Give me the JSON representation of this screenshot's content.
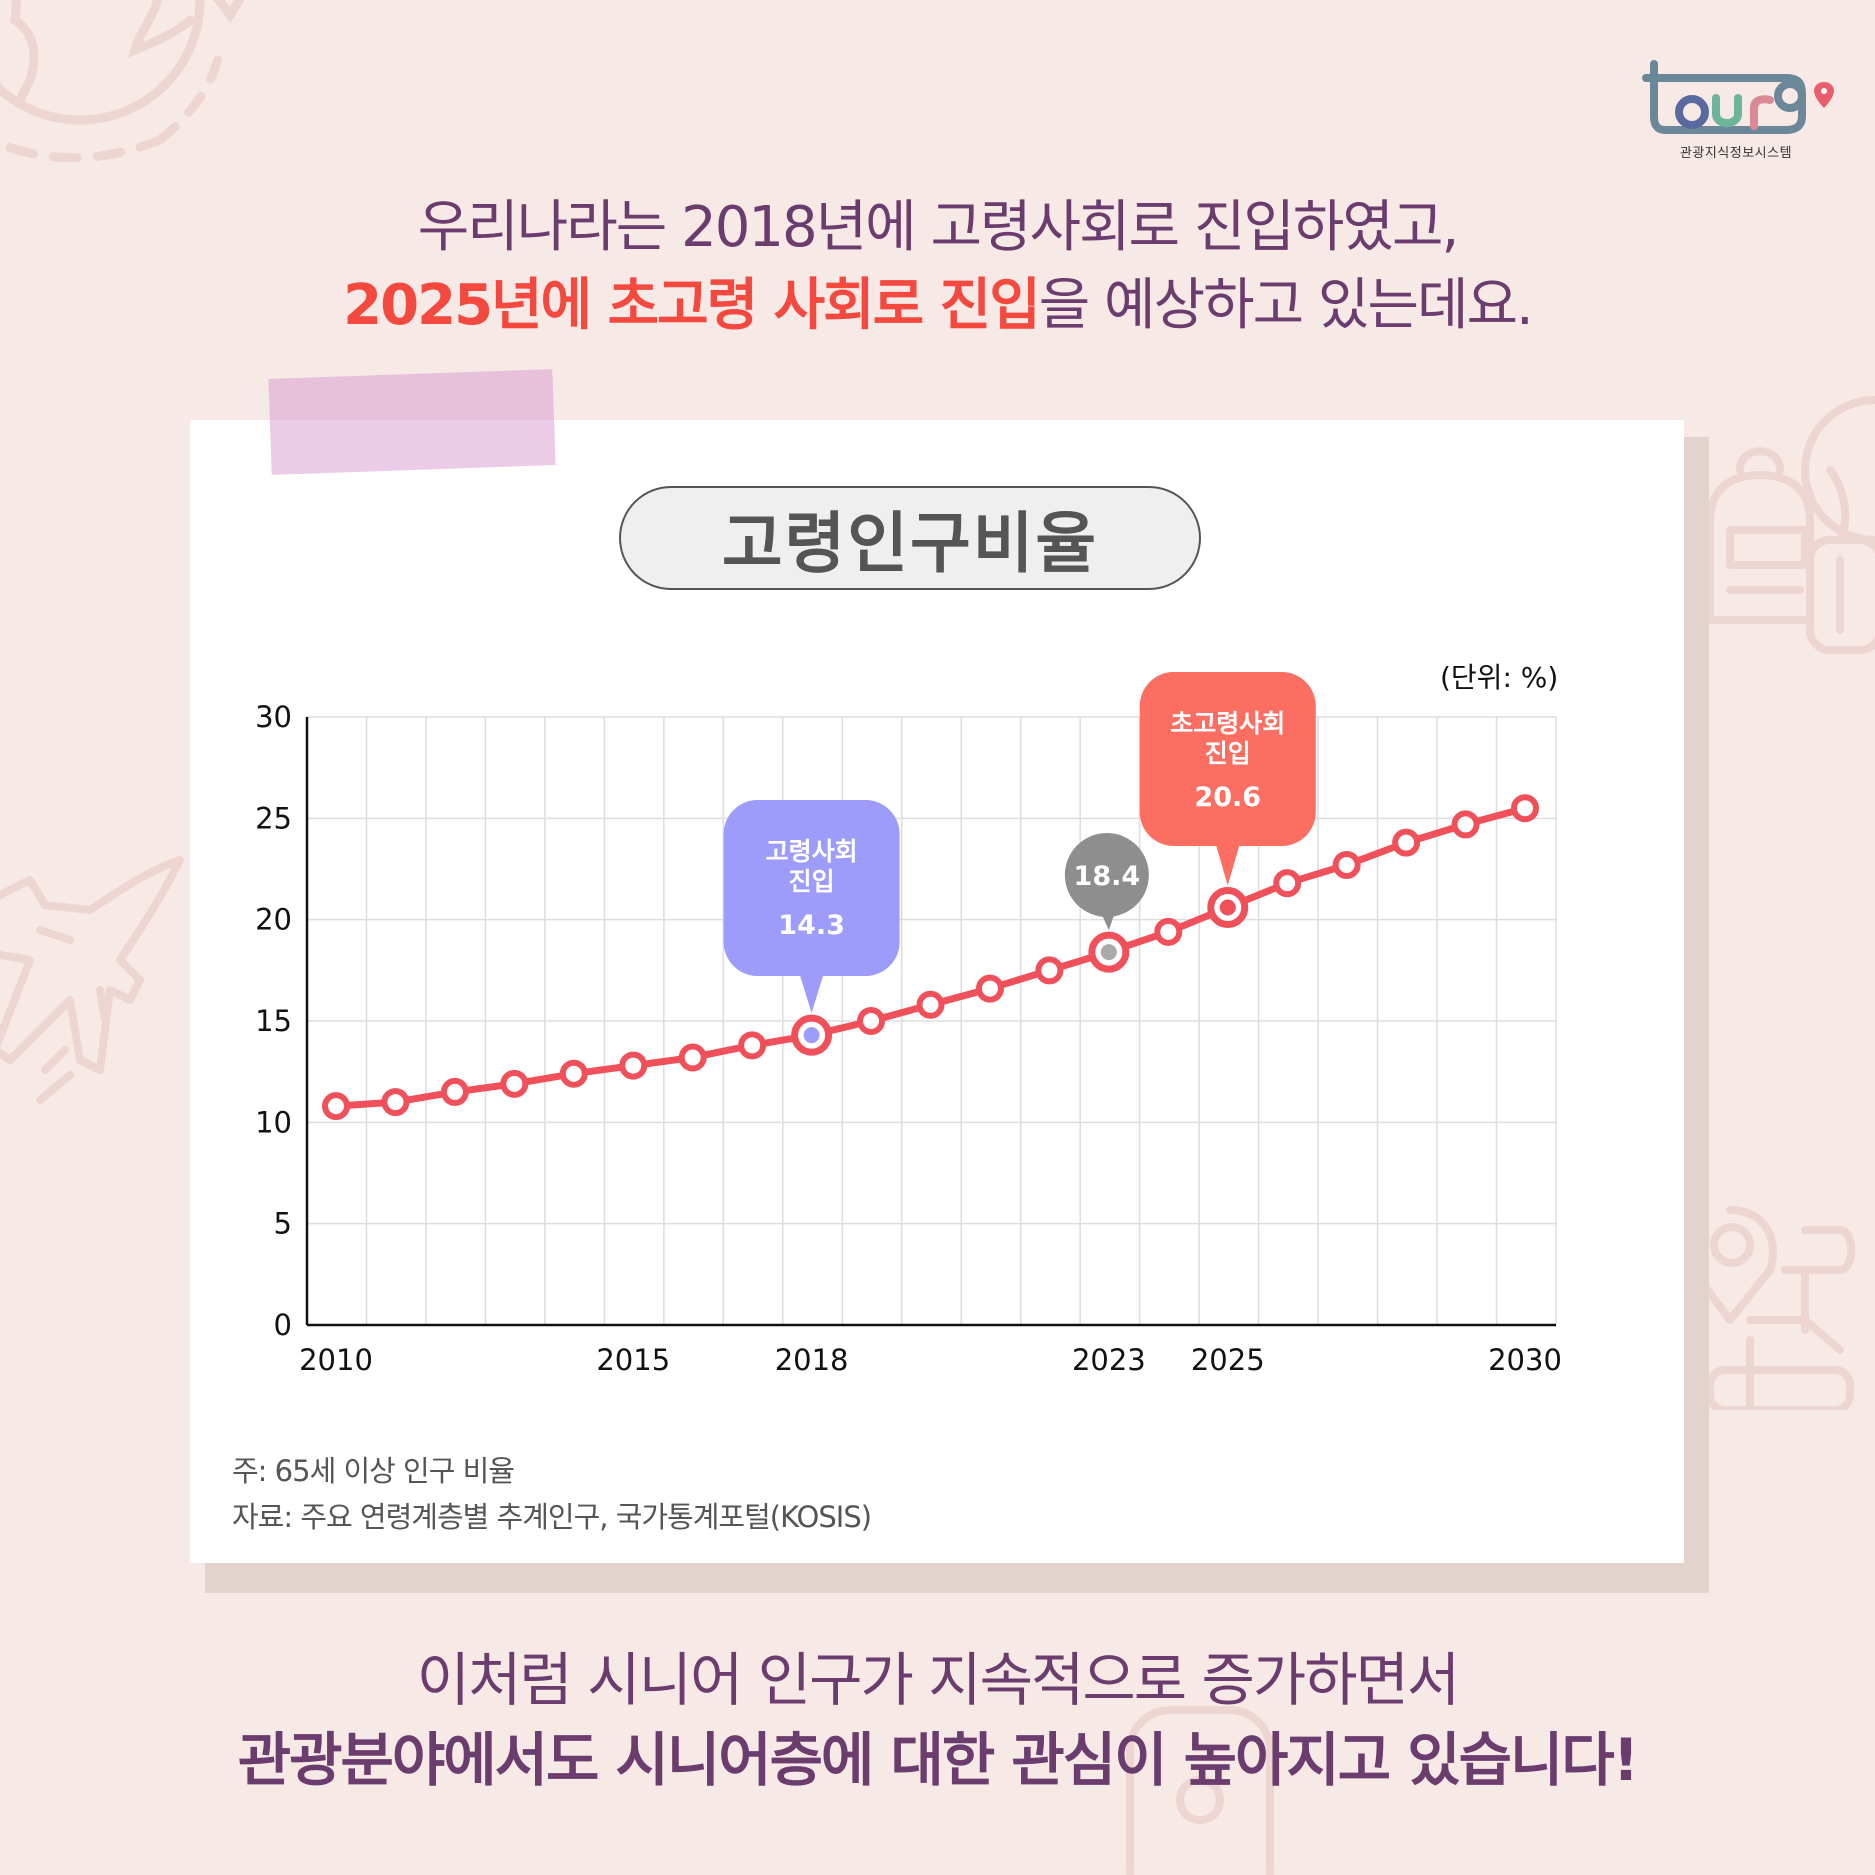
{
  "logo": {
    "wordmark": "tour9",
    "subtitle": "관광지식정보시스템",
    "colors": {
      "frame": "#6c8798",
      "o": "#5a6a9e",
      "u": "#6cb59c",
      "r": "#d98a94",
      "pin": "#e95e6c"
    }
  },
  "headline": {
    "line1": "우리나라는 2018년에 고령사회로 진입하였고,",
    "line2_highlight": "2025년에 초고령 사회로 진입",
    "line2_rest": "을 예상하고 있는데요."
  },
  "card": {
    "title": "고령인구비율",
    "unit": "(단위: %)",
    "footnotes": [
      "주: 65세 이상 인구 비율",
      "자료: 주요 연령계층별 추계인구, 국가통계포털(KOSIS)"
    ]
  },
  "callouts": [
    {
      "id": "aged",
      "line1": "고령사회",
      "line2": "진입",
      "value": "14.3",
      "year": 2018,
      "color": "#9e9cfb"
    },
    {
      "id": "y2023",
      "value": "18.4",
      "year": 2023,
      "color": "#8e8e8e"
    },
    {
      "id": "super_aged",
      "line1": "초고령사회",
      "line2": "진입",
      "value": "20.6",
      "year": 2025,
      "color": "#fb6e61"
    }
  ],
  "bottom": {
    "line1": "이처럼 시니어 인구가 지속적으로 증가하면서",
    "line2": "관광분야에서도 시니어층에 대한 관심이 높아지고 있습니다!"
  },
  "colors": {
    "background": "#f7e9e6",
    "purple_text": "#6b3c6e",
    "red_highlight": "#f4493f",
    "line": "#f0505a",
    "grid": "#dddddd"
  },
  "chart_data": {
    "type": "line",
    "title": "고령인구비율",
    "xlabel": "",
    "ylabel": "",
    "unit": "%",
    "x": [
      2010,
      2011,
      2012,
      2013,
      2014,
      2015,
      2016,
      2017,
      2018,
      2019,
      2020,
      2021,
      2022,
      2023,
      2024,
      2025,
      2026,
      2027,
      2028,
      2029,
      2030
    ],
    "series": [
      {
        "name": "65세 이상 인구 비율",
        "values": [
          10.8,
          11.0,
          11.5,
          11.9,
          12.4,
          12.8,
          13.2,
          13.8,
          14.3,
          15.0,
          15.8,
          16.6,
          17.5,
          18.4,
          19.4,
          20.6,
          21.8,
          22.7,
          23.8,
          24.7,
          25.5
        ]
      }
    ],
    "x_tick_labels": [
      "2010",
      "2015",
      "2018",
      "2023",
      "2025",
      "2030"
    ],
    "y_ticks": [
      0,
      5,
      10,
      15,
      20,
      25,
      30
    ],
    "ylim": [
      0,
      30
    ],
    "xlim": [
      2009.5,
      2030.5
    ],
    "grid": true,
    "annotations": [
      {
        "x": 2018,
        "y": 14.3,
        "text": "고령사회 진입 14.3"
      },
      {
        "x": 2023,
        "y": 18.4,
        "text": "18.4"
      },
      {
        "x": 2025,
        "y": 20.6,
        "text": "초고령사회 진입 20.6"
      }
    ],
    "legend": "none",
    "notes": [
      "주: 65세 이상 인구 비율",
      "자료: 주요 연령계층별 추계인구, 국가통계포털(KOSIS)"
    ]
  }
}
